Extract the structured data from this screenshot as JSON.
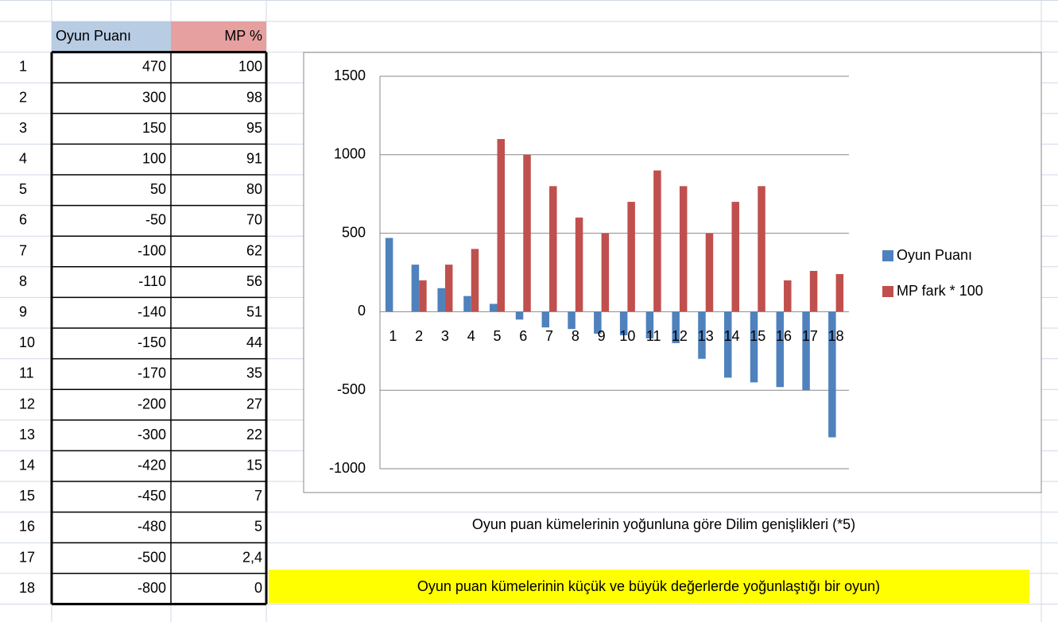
{
  "table": {
    "headers": [
      "Oyun Puanı",
      "MP %"
    ],
    "row_labels": [
      "1",
      "2",
      "3",
      "4",
      "5",
      "6",
      "7",
      "8",
      "9",
      "10",
      "11",
      "12",
      "13",
      "14",
      "15",
      "16",
      "17",
      "18"
    ],
    "rows": [
      [
        470,
        100
      ],
      [
        300,
        98
      ],
      [
        150,
        95
      ],
      [
        100,
        91
      ],
      [
        50,
        80
      ],
      [
        -50,
        70
      ],
      [
        -100,
        62
      ],
      [
        -110,
        56
      ],
      [
        -140,
        51
      ],
      [
        -150,
        44
      ],
      [
        -170,
        35
      ],
      [
        -200,
        27
      ],
      [
        -300,
        22
      ],
      [
        -420,
        15
      ],
      [
        -450,
        7
      ],
      [
        -480,
        5
      ],
      [
        -500,
        "2,4"
      ],
      [
        -800,
        0
      ]
    ]
  },
  "chart_data": {
    "type": "bar",
    "categories": [
      "1",
      "2",
      "3",
      "4",
      "5",
      "6",
      "7",
      "8",
      "9",
      "10",
      "11",
      "12",
      "13",
      "14",
      "15",
      "16",
      "17",
      "18"
    ],
    "series": [
      {
        "name": "Oyun Puanı",
        "color": "#4f81bd",
        "values": [
          470,
          300,
          150,
          100,
          50,
          -50,
          -100,
          -110,
          -140,
          -150,
          -170,
          -200,
          -300,
          -420,
          -450,
          -480,
          -500,
          -800
        ]
      },
      {
        "name": "MP fark *  100",
        "color": "#c0504d",
        "values": [
          0,
          200,
          300,
          400,
          1100,
          1000,
          800,
          600,
          500,
          700,
          900,
          800,
          500,
          700,
          800,
          200,
          260,
          240
        ]
      }
    ],
    "ylim": [
      -1000,
      1500
    ],
    "yticks": [
      -1000,
      -500,
      0,
      500,
      1000,
      1500
    ],
    "grid": true,
    "legend": "right"
  },
  "caption": "Oyun puan kümelerinin yoğunluna göre Dilim genişlikleri (*5)",
  "note": "Oyun puan kümelerinin küçük ve büyük değerlerde yoğunlaştığı bir oyun)"
}
